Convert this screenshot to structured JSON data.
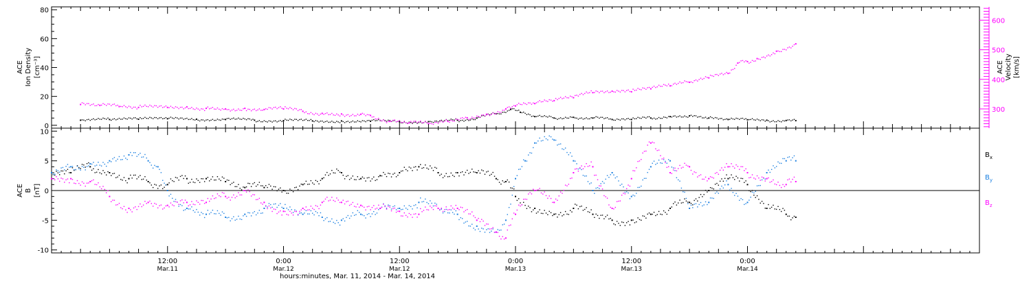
{
  "x_axis": {
    "title": "hours:minutes, Mar. 11, 2014 - Mar. 14, 2014",
    "start_hour": 0,
    "end_hour": 96,
    "ticks": [
      {
        "hour": 12,
        "time": "12:00",
        "date": "Mar.11"
      },
      {
        "hour": 24,
        "time": "0:00",
        "date": "Mar.12"
      },
      {
        "hour": 36,
        "time": "12:00",
        "date": "Mar.12"
      },
      {
        "hour": 48,
        "time": "0:00",
        "date": "Mar.13"
      },
      {
        "hour": 60,
        "time": "12:00",
        "date": "Mar.13"
      },
      {
        "hour": 72,
        "time": "0:00",
        "date": "Mar.14"
      }
    ]
  },
  "chart_data": [
    {
      "type": "scatter",
      "panel": "top",
      "ylabel_left": [
        "ACE",
        "Ion Density",
        "[cm⁻³]"
      ],
      "ylabel_right": [
        "ACE",
        "Velocity",
        "[km/s]"
      ],
      "ylim_left": [
        -2,
        82
      ],
      "yticks_left": [
        0,
        20,
        40,
        60,
        80
      ],
      "ylim_right": [
        235,
        645
      ],
      "yticks_right": [
        300,
        400,
        500,
        600
      ],
      "series": [
        {
          "axis": "left",
          "color": "#000000",
          "points": [
            [
              3,
              3.5
            ],
            [
              6,
              4
            ],
            [
              9,
              4.2
            ],
            [
              12,
              4.5
            ],
            [
              15,
              4.2
            ],
            [
              18,
              4
            ],
            [
              21,
              3.5
            ],
            [
              24,
              3.2
            ],
            [
              27,
              3
            ],
            [
              30,
              3
            ],
            [
              33,
              2.8
            ],
            [
              36,
              2.5
            ],
            [
              39,
              2.5
            ],
            [
              42,
              3.5
            ],
            [
              44,
              5
            ],
            [
              46,
              8
            ],
            [
              47.5,
              11
            ],
            [
              48.5,
              9
            ],
            [
              50,
              6
            ],
            [
              52,
              5
            ],
            [
              54,
              5.5
            ],
            [
              56,
              5
            ],
            [
              58,
              4
            ],
            [
              60,
              4
            ],
            [
              62,
              5
            ],
            [
              64,
              6
            ],
            [
              66,
              6.5
            ],
            [
              68,
              5
            ],
            [
              70,
              4
            ],
            [
              72,
              3.8
            ],
            [
              74,
              3.5
            ],
            [
              76,
              3.3
            ],
            [
              77,
              3.2
            ]
          ]
        },
        {
          "axis": "right",
          "color": "#ff00ff",
          "points": [
            [
              3,
              315
            ],
            [
              5,
              312
            ],
            [
              7,
              308
            ],
            [
              9,
              305
            ],
            [
              12,
              305
            ],
            [
              14,
              307
            ],
            [
              16,
              302
            ],
            [
              18,
              300
            ],
            [
              20,
              302
            ],
            [
              22,
              298
            ],
            [
              24,
              300
            ],
            [
              26,
              292
            ],
            [
              28,
              285
            ],
            [
              30,
              283
            ],
            [
              32,
              282
            ],
            [
              33,
              278
            ],
            [
              35,
              258
            ],
            [
              37,
              253
            ],
            [
              39,
              250
            ],
            [
              41,
              258
            ],
            [
              43,
              270
            ],
            [
              45,
              282
            ],
            [
              47,
              300
            ],
            [
              48,
              310
            ],
            [
              50,
              318
            ],
            [
              52,
              328
            ],
            [
              54,
              338
            ],
            [
              56,
              355
            ],
            [
              58,
              360
            ],
            [
              60,
              358
            ],
            [
              62,
              368
            ],
            [
              64,
              378
            ],
            [
              66,
              390
            ],
            [
              68,
              405
            ],
            [
              70,
              420
            ],
            [
              71,
              455
            ],
            [
              72,
              460
            ],
            [
              73,
              470
            ],
            [
              75,
              495
            ],
            [
              77,
              520
            ]
          ]
        }
      ]
    },
    {
      "type": "scatter",
      "panel": "bottom",
      "ylabel_left": [
        "ACE",
        "B",
        "[nT]"
      ],
      "ylim": [
        -10.5,
        10.5
      ],
      "yticks": [
        -10,
        -5,
        0,
        5,
        10
      ],
      "zero_line": true,
      "series": [
        {
          "name": "B_x",
          "legend_main": "B",
          "legend_sub": "x",
          "color": "#000000",
          "points": [
            [
              0,
              3
            ],
            [
              2,
              3
            ],
            [
              4,
              4
            ],
            [
              6,
              3
            ],
            [
              8,
              2
            ],
            [
              10,
              1.5
            ],
            [
              12,
              1
            ],
            [
              14,
              2
            ],
            [
              16,
              2
            ],
            [
              18,
              1.5
            ],
            [
              20,
              0.5
            ],
            [
              22,
              0.5
            ],
            [
              24,
              0
            ],
            [
              26,
              1
            ],
            [
              28,
              2
            ],
            [
              30,
              3
            ],
            [
              32,
              2
            ],
            [
              34,
              2.5
            ],
            [
              36,
              3
            ],
            [
              38,
              4
            ],
            [
              40,
              3
            ],
            [
              42,
              3
            ],
            [
              44,
              3
            ],
            [
              46,
              2
            ],
            [
              47,
              1.5
            ],
            [
              48,
              -1
            ],
            [
              50,
              -3
            ],
            [
              52,
              -4
            ],
            [
              54,
              -3
            ],
            [
              56,
              -4
            ],
            [
              58,
              -5
            ],
            [
              60,
              -5
            ],
            [
              62,
              -4
            ],
            [
              64,
              -3
            ],
            [
              66,
              -2
            ],
            [
              68,
              0
            ],
            [
              70,
              2
            ],
            [
              72,
              1
            ],
            [
              74,
              -3
            ],
            [
              76,
              -4
            ],
            [
              77,
              -4.5
            ]
          ]
        },
        {
          "name": "B_y",
          "legend_main": "B",
          "legend_sub": "y",
          "color": "#1a7fe0",
          "points": [
            [
              0,
              3
            ],
            [
              2,
              4
            ],
            [
              4,
              4.5
            ],
            [
              6,
              5
            ],
            [
              8,
              6
            ],
            [
              10,
              5
            ],
            [
              11,
              4
            ],
            [
              12,
              0
            ],
            [
              14,
              -3
            ],
            [
              16,
              -4
            ],
            [
              18,
              -4.5
            ],
            [
              20,
              -4
            ],
            [
              22,
              -3
            ],
            [
              24,
              -3
            ],
            [
              26,
              -4
            ],
            [
              28,
              -4.5
            ],
            [
              30,
              -5
            ],
            [
              32,
              -4
            ],
            [
              34,
              -3
            ],
            [
              36,
              -3
            ],
            [
              38,
              -2
            ],
            [
              40,
              -3
            ],
            [
              42,
              -4
            ],
            [
              44,
              -6
            ],
            [
              46,
              -7
            ],
            [
              47,
              -5
            ],
            [
              48,
              2
            ],
            [
              49,
              5
            ],
            [
              50,
              8
            ],
            [
              52,
              8.5
            ],
            [
              54,
              5
            ],
            [
              56,
              0
            ],
            [
              58,
              3
            ],
            [
              60,
              -1
            ],
            [
              62,
              4
            ],
            [
              64,
              5
            ],
            [
              66,
              -3
            ],
            [
              68,
              -2
            ],
            [
              70,
              1
            ],
            [
              72,
              -2
            ],
            [
              74,
              3
            ],
            [
              76,
              5
            ],
            [
              77,
              5
            ]
          ]
        },
        {
          "name": "B_z",
          "legend_main": "B",
          "legend_sub": "z",
          "color": "#ff00ff",
          "points": [
            [
              0,
              2
            ],
            [
              2,
              2
            ],
            [
              4,
              1.5
            ],
            [
              6,
              -1
            ],
            [
              8,
              -3
            ],
            [
              10,
              -2
            ],
            [
              12,
              -2.5
            ],
            [
              14,
              -2
            ],
            [
              16,
              -2
            ],
            [
              18,
              -1
            ],
            [
              20,
              0
            ],
            [
              22,
              -2
            ],
            [
              24,
              -3.5
            ],
            [
              26,
              -3
            ],
            [
              28,
              -2
            ],
            [
              30,
              -2
            ],
            [
              32,
              -2.5
            ],
            [
              34,
              -3
            ],
            [
              36,
              -3.5
            ],
            [
              38,
              -4
            ],
            [
              40,
              -3
            ],
            [
              42,
              -3
            ],
            [
              44,
              -5
            ],
            [
              46,
              -7
            ],
            [
              47,
              -8
            ],
            [
              48,
              -4
            ],
            [
              50,
              0
            ],
            [
              52,
              -2
            ],
            [
              54,
              3
            ],
            [
              56,
              4
            ],
            [
              58,
              -3
            ],
            [
              60,
              2
            ],
            [
              62,
              8
            ],
            [
              64,
              3
            ],
            [
              66,
              4
            ],
            [
              68,
              2
            ],
            [
              70,
              4
            ],
            [
              72,
              3
            ],
            [
              74,
              2
            ],
            [
              76,
              1
            ],
            [
              77,
              1.5
            ]
          ]
        }
      ]
    }
  ]
}
